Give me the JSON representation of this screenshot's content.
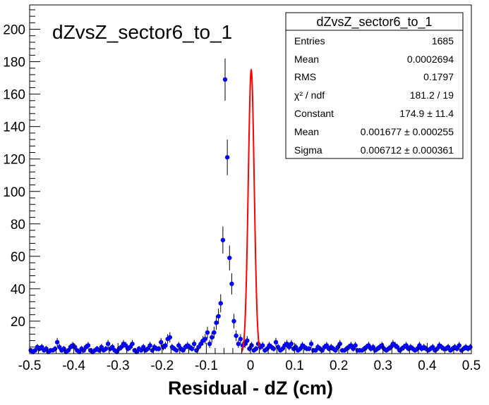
{
  "chart_data": {
    "type": "scatter",
    "title": "dZvsZ_sector6_to_1",
    "xlabel": "Residual - dZ (cm)",
    "ylabel": "",
    "xlim": [
      -0.5,
      0.5
    ],
    "ylim": [
      0,
      215
    ],
    "x_ticks": [
      "-0.5",
      "-0.4",
      "-0.3",
      "-0.2",
      "-0.1",
      "0",
      "0.1",
      "0.2",
      "0.3",
      "0.4",
      "0.5"
    ],
    "y_ticks": [
      "20",
      "40",
      "60",
      "80",
      "100",
      "120",
      "140",
      "160",
      "180",
      "200"
    ],
    "bin_width": 0.005,
    "colors": {
      "points": "#0000ff",
      "fit": "#ff0000",
      "axes": "#000000"
    },
    "series": [
      {
        "values": [
          2,
          1,
          2,
          4,
          3,
          4,
          2,
          3,
          1,
          2,
          2,
          3,
          7,
          4,
          2,
          3,
          1,
          2,
          4,
          5,
          4,
          2,
          1,
          3,
          2,
          4,
          5,
          2,
          1,
          2,
          3,
          2,
          4,
          2,
          3,
          6,
          3,
          4,
          2,
          1,
          3,
          4,
          6,
          5,
          3,
          4,
          6,
          2,
          1,
          3,
          2,
          4,
          2,
          3,
          5,
          2,
          4,
          3,
          3,
          7,
          4,
          5,
          9,
          10,
          4,
          3,
          2,
          5,
          3,
          2,
          4,
          5,
          4,
          3,
          6,
          2,
          4,
          6,
          8,
          9,
          13,
          6,
          10,
          13,
          19,
          23,
          31,
          70,
          169,
          121,
          59,
          43,
          20,
          11,
          6,
          9,
          5,
          6,
          8,
          3,
          5,
          2,
          3,
          6,
          4,
          5,
          2,
          3,
          5,
          4,
          3,
          7,
          4,
          2,
          3,
          5,
          6,
          4,
          6,
          3,
          4,
          2,
          3,
          5,
          4,
          3,
          3,
          6,
          2,
          2,
          4,
          3,
          2,
          4,
          5,
          3,
          4,
          3,
          2,
          4,
          6,
          2,
          2,
          3,
          4,
          5,
          3,
          5,
          2,
          2,
          2,
          3,
          4,
          5,
          3,
          4,
          2,
          3,
          4,
          5,
          3,
          2,
          3,
          4,
          6,
          5,
          4,
          2,
          3,
          4,
          5,
          3,
          4,
          3,
          2,
          3,
          5,
          3,
          4,
          3,
          2,
          3,
          4,
          2,
          3,
          5,
          4,
          3,
          3,
          4,
          2,
          3,
          4,
          3,
          5,
          2,
          3,
          4,
          3,
          4
        ]
      }
    ],
    "fit": {
      "function": "gaus",
      "constant": 174.9,
      "mean": 0.001677,
      "sigma": 0.006712,
      "range": [
        -0.02,
        0.02
      ]
    }
  },
  "stats_box": {
    "title": "dZvsZ_sector6_to_1",
    "rows": [
      {
        "label": "Entries",
        "value": "1685"
      },
      {
        "label": "Mean",
        "value": "0.0002694"
      },
      {
        "label": "RMS",
        "value": "0.1797"
      },
      {
        "label": "χ² / ndf",
        "value": "181.2 / 19"
      },
      {
        "label": "Constant",
        "value": "174.9 ± 11.4"
      },
      {
        "label": "Mean",
        "value": "0.001677 ± 0.000255"
      },
      {
        "label": "Sigma",
        "value": "0.006712 ± 0.000361"
      }
    ]
  }
}
